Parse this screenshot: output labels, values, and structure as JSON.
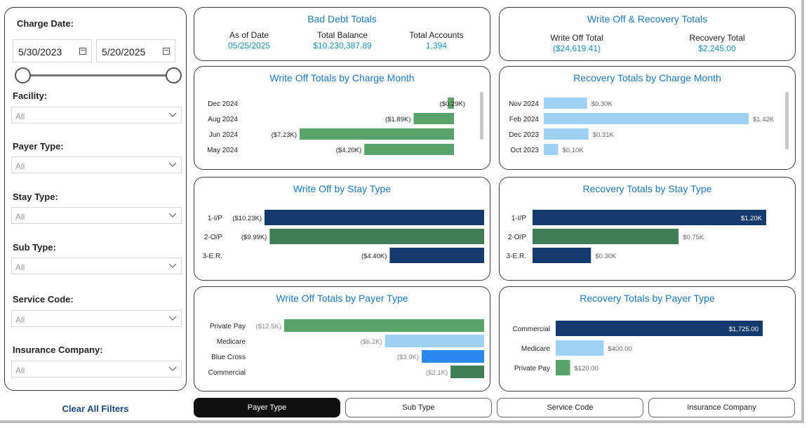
{
  "filters": {
    "charge_date_label": "Charge Date:",
    "start_date": "5/30/2023",
    "end_date": "5/20/2025",
    "fields": [
      {
        "label": "Facility:",
        "value": "All"
      },
      {
        "label": "Payer Type:",
        "value": "All"
      },
      {
        "label": "Stay Type:",
        "value": "All"
      },
      {
        "label": "Sub Type:",
        "value": "All"
      },
      {
        "label": "Service Code:",
        "value": "All"
      },
      {
        "label": "Insurance Company:",
        "value": "All"
      }
    ],
    "clear_label": "Clear All Filters"
  },
  "bad_debt": {
    "title": "Bad Debt Totals",
    "items": [
      {
        "label": "As of Date",
        "value": "05/25/2025"
      },
      {
        "label": "Total Balance",
        "value": "$10,230,387.89"
      },
      {
        "label": "Total Accounts",
        "value": "1,394"
      }
    ]
  },
  "write_off_recovery": {
    "title": "Write Off & Recovery Totals",
    "items": [
      {
        "label": "Write Off Total",
        "value": "($24,619.41)"
      },
      {
        "label": "Recovery Total",
        "value": "$2,245.00"
      }
    ]
  },
  "tabs": [
    {
      "label": "Payer Type",
      "active": true
    },
    {
      "label": "Sub Type",
      "active": false
    },
    {
      "label": "Service Code",
      "active": false
    },
    {
      "label": "Insurance Company",
      "active": false
    }
  ],
  "colors": {
    "green": "#5aa36a",
    "dark_green": "#3f7d56",
    "navy": "#14396b",
    "light_blue": "#9fd0f6",
    "bright_blue": "#2a88f0",
    "title_blue": "#1f77b4"
  },
  "chart_data": [
    {
      "id": "wo_month",
      "type": "bar",
      "orientation": "horizontal",
      "title": "Write Off Totals by Charge Month",
      "categories": [
        "Dec 2024",
        "Aug 2024",
        "Jun 2024",
        "May 2024"
      ],
      "values": [
        -0.29,
        -1.89,
        -7.23,
        -4.2
      ],
      "labels": [
        "($0.29K)",
        "($1.89K)",
        "($7.23K)",
        "($4.20K)"
      ],
      "colors": [
        "#5aa36a",
        "#5aa36a",
        "#5aa36a",
        "#5aa36a"
      ],
      "unit": "K"
    },
    {
      "id": "rec_month",
      "type": "bar",
      "orientation": "horizontal",
      "title": "Recovery Totals by Charge Month",
      "categories": [
        "Nov 2024",
        "Feb 2024",
        "Dec 2023",
        "Oct 2023"
      ],
      "values": [
        0.3,
        1.42,
        0.31,
        0.1
      ],
      "labels": [
        "$0.30K",
        "$1.42K",
        "$0.31K",
        "$0.10K"
      ],
      "colors": [
        "#9fd0f6",
        "#9fd0f6",
        "#9fd0f6",
        "#9fd0f6"
      ],
      "unit": "K"
    },
    {
      "id": "wo_stay",
      "type": "bar",
      "orientation": "horizontal",
      "title": "Write Off by Stay Type",
      "categories": [
        "1-I/P",
        "2-O/P",
        "3-E.R."
      ],
      "values": [
        -10.23,
        -9.99,
        -4.4
      ],
      "labels": [
        "($10.23K)",
        "($9.99K)",
        "($4.40K)"
      ],
      "colors": [
        "#14396b",
        "#3f7d56",
        "#14396b"
      ],
      "unit": "K"
    },
    {
      "id": "rec_stay",
      "type": "bar",
      "orientation": "horizontal",
      "title": "Recovery Totals by Stay Type",
      "categories": [
        "1-I/P",
        "2-O/P",
        "3-E.R."
      ],
      "values": [
        1.2,
        0.75,
        0.3
      ],
      "labels": [
        "$1.20K",
        "$0.75K",
        "$0.30K"
      ],
      "colors": [
        "#14396b",
        "#3f7d56",
        "#14396b"
      ],
      "unit": "K"
    },
    {
      "id": "wo_payer",
      "type": "bar",
      "orientation": "horizontal",
      "title": "Write Off Totals by Payer Type",
      "categories": [
        "Private Pay",
        "Medicare",
        "Blue Cross",
        "Commercial"
      ],
      "values": [
        -12.5,
        -6.2,
        -3.9,
        -2.1
      ],
      "labels": [
        "($12.5K)",
        "($6.2K)",
        "($3.9K)",
        "($2.1K)"
      ],
      "colors": [
        "#5aa36a",
        "#9fd0f6",
        "#2a88f0",
        "#3f7d56"
      ],
      "unit": "K"
    },
    {
      "id": "rec_payer",
      "type": "bar",
      "orientation": "horizontal",
      "title": "Recovery Totals by Payer Type",
      "categories": [
        "Commercial",
        "Medicare",
        "Private Pay"
      ],
      "values": [
        1725.0,
        400.0,
        120.0
      ],
      "labels": [
        "$1,725.00",
        "$400.00",
        "$120.00"
      ],
      "colors": [
        "#14396b",
        "#9fd0f6",
        "#5aa36a"
      ],
      "unit": "$"
    }
  ]
}
